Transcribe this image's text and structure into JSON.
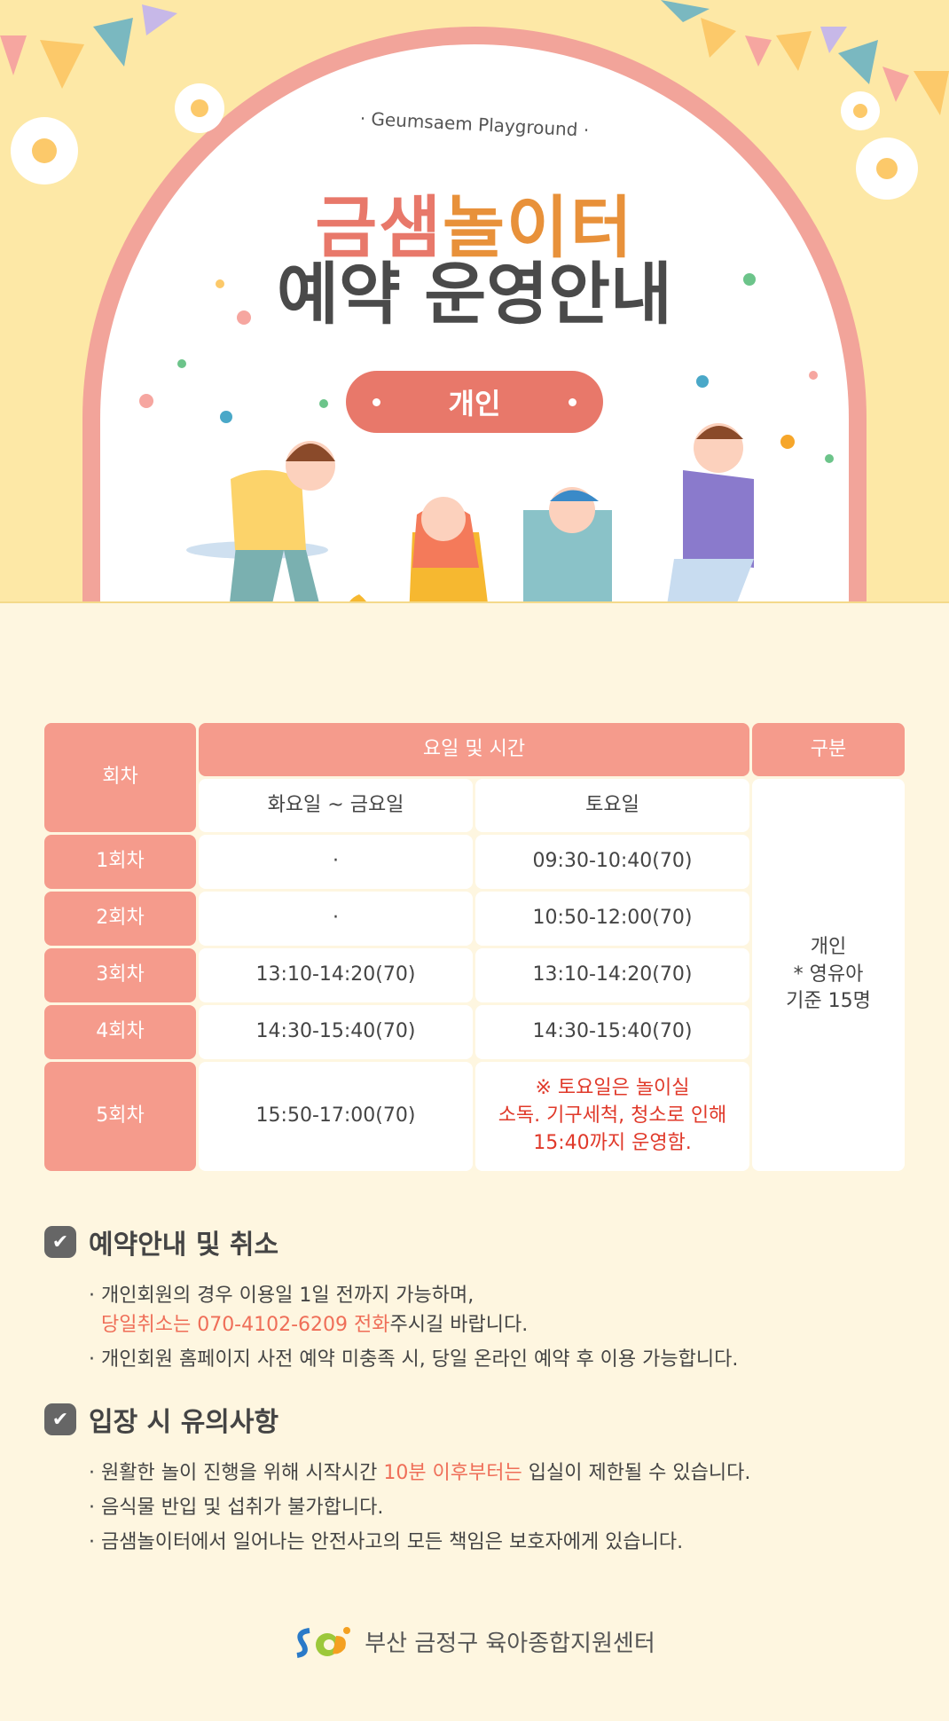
{
  "hero": {
    "subtitle": "· Geumsaem Playground ·",
    "title_part1": "금샘",
    "title_part2": "놀이터",
    "title2": "예약 운영안내",
    "badge": "개인"
  },
  "table": {
    "head_round": "회차",
    "head_time": "요일 및 시간",
    "head_type": "구분",
    "col_weekday": "화요일 ~ 금요일",
    "col_saturday": "토요일",
    "rows": [
      {
        "round": "1회차",
        "weekday": "·",
        "saturday": "09:30-10:40(70)"
      },
      {
        "round": "2회차",
        "weekday": "·",
        "saturday": "10:50-12:00(70)"
      },
      {
        "round": "3회차",
        "weekday": "13:10-14:20(70)",
        "saturday": "13:10-14:20(70)"
      },
      {
        "round": "4회차",
        "weekday": "14:30-15:40(70)",
        "saturday": "14:30-15:40(70)"
      },
      {
        "round": "5회차",
        "weekday": "15:50-17:00(70)",
        "saturday_note": [
          "※ 토요일은 놀이실",
          "소독. 기구세척, 청소로 인해",
          "15:40까지 운영함."
        ]
      }
    ],
    "type_lines": [
      "개인",
      "* 영유아",
      "기준 15명"
    ]
  },
  "sections": [
    {
      "title": "예약안내 및 취소",
      "l1": "· 개인회원의 경우 이용일 1일 전까지 가능하며,",
      "l2_hl": "당일취소는 070-4102-6209 전화",
      "l2_rest": "주시길 바랍니다.",
      "l3": "· 개인회원 홈페이지 사전 예약 미충족 시, 당일 온라인 예약 후 이용 가능합니다."
    },
    {
      "title": "입장 시 유의사항",
      "l1_a": "· 원활한 놀이 진행을 위해 시작시간 ",
      "l1_hl": "10분 이후부터는",
      "l1_b": " 입실이 제한될 수 있습니다.",
      "l2": "· 음식물 반입 및 섭취가 불가합니다.",
      "l3": "· 금샘놀이터에서 일어나는 안전사고의 모든 책임은 보호자에게 있습니다."
    }
  ],
  "footer": {
    "org": "부산 금정구 육아종합지원센터"
  },
  "colors": {
    "accent": "#e8786a",
    "header_cell": "#f59b8c",
    "background": "#fef6e0",
    "hero_bg": "#fde8a6"
  }
}
